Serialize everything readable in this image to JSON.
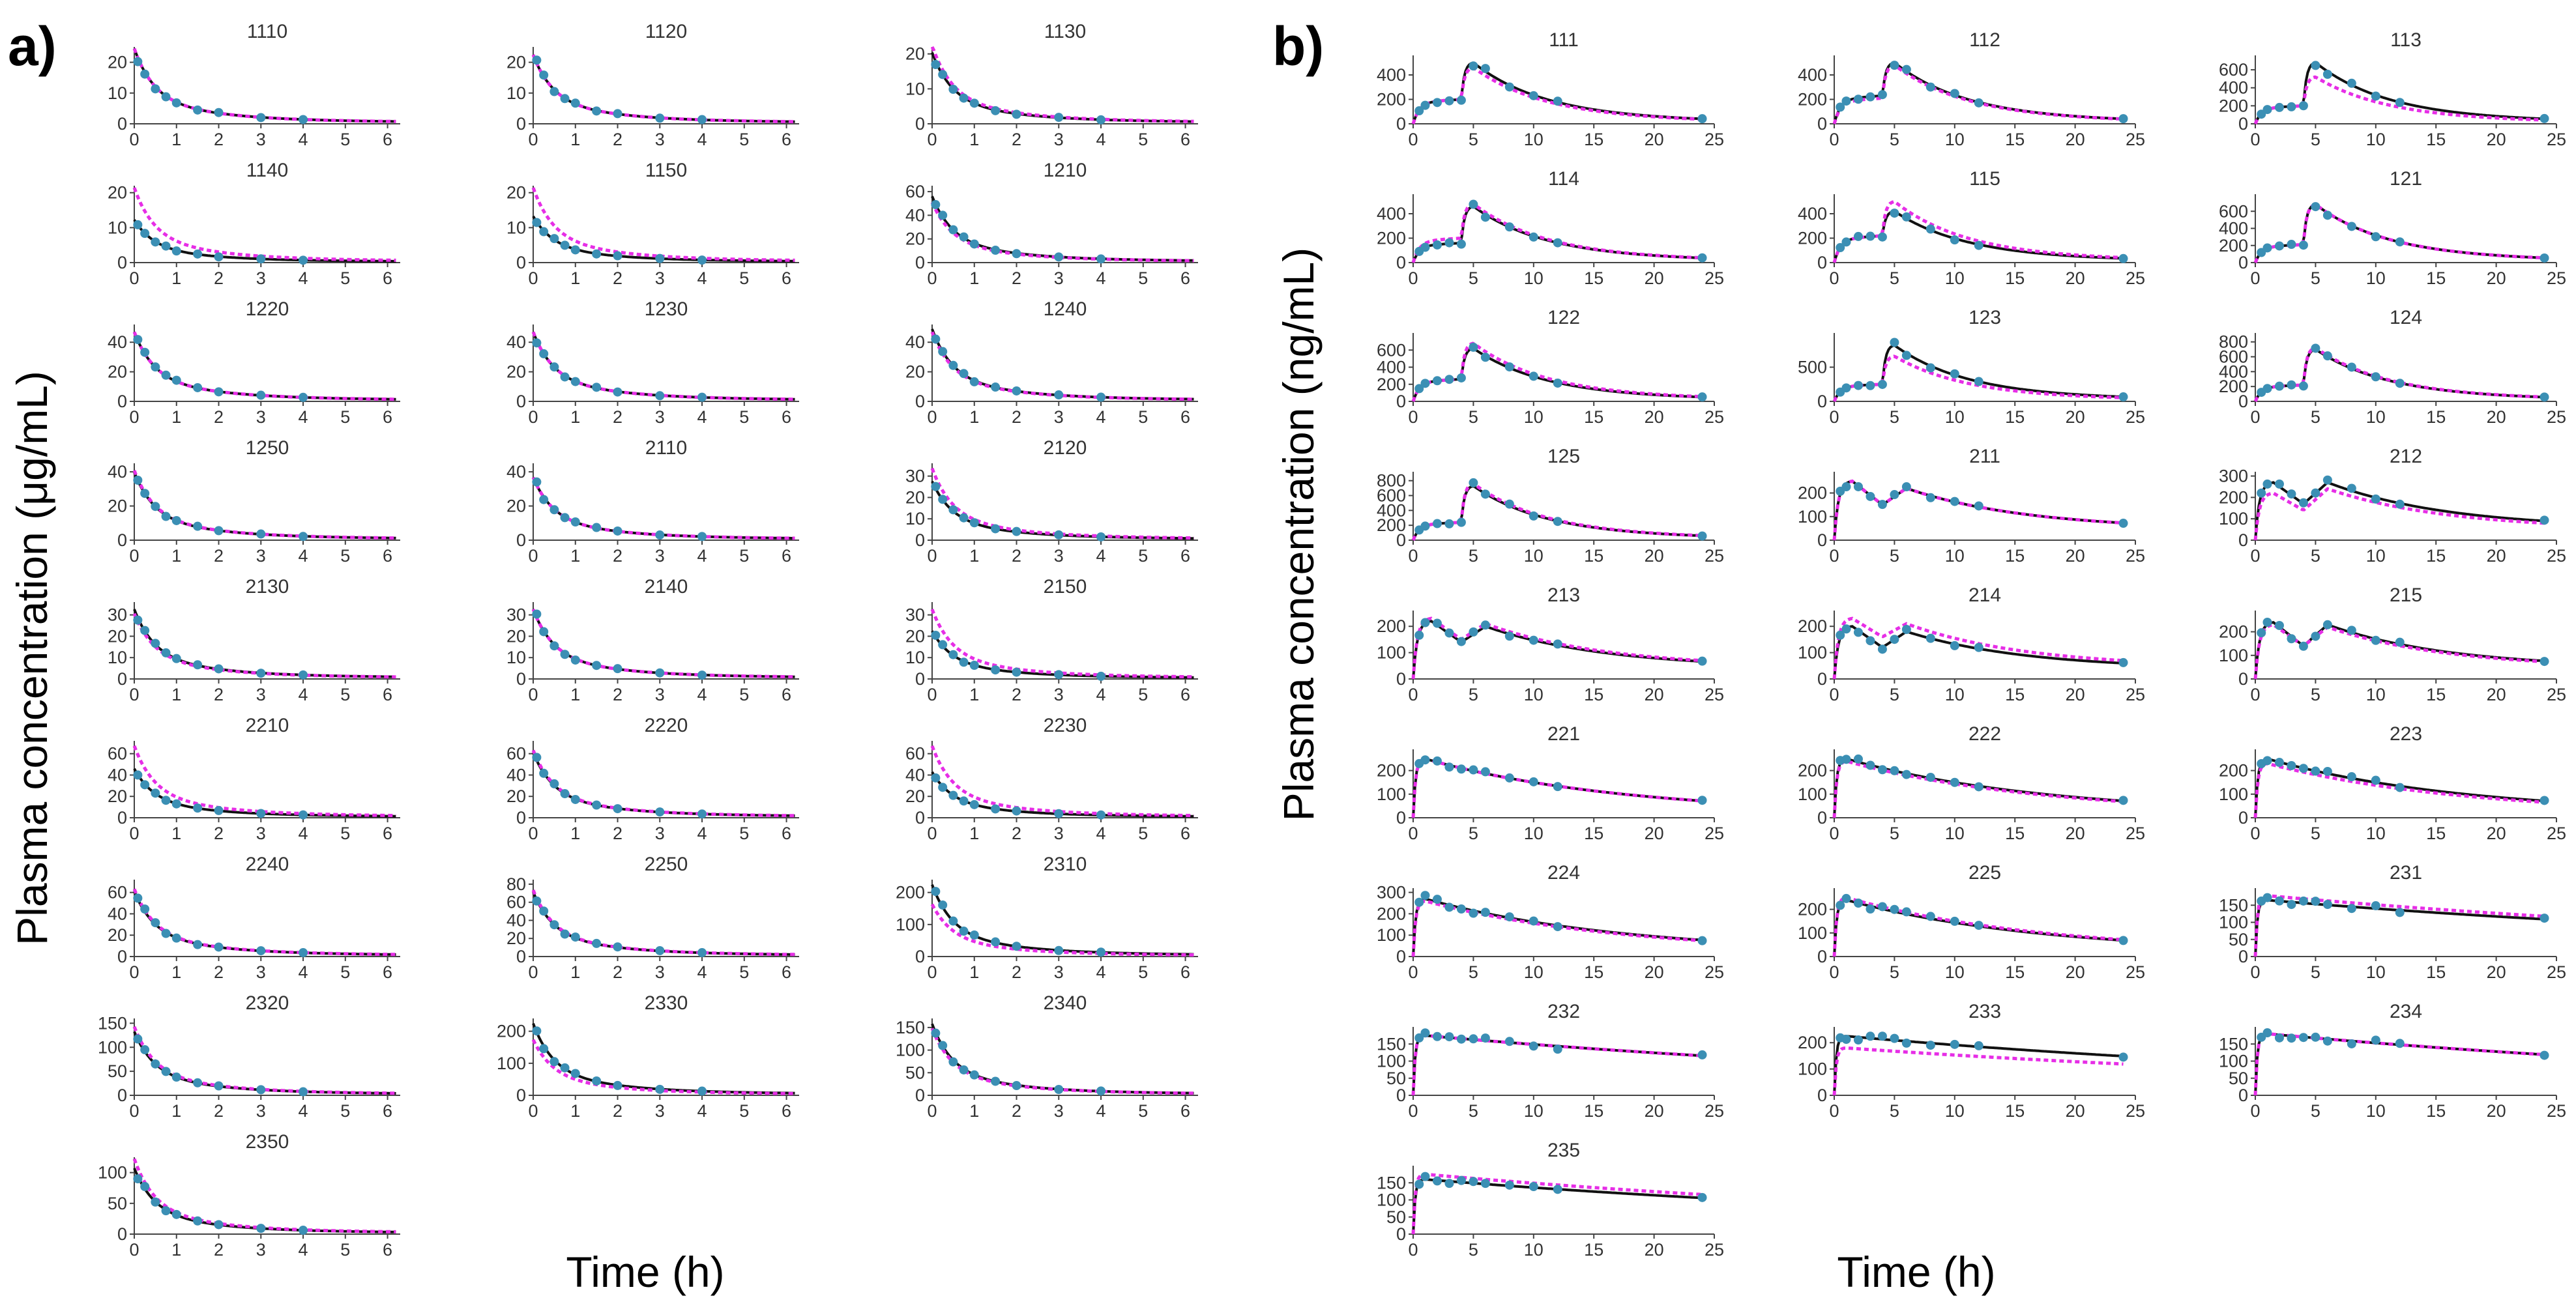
{
  "figure": {
    "panel_a_label": "a)",
    "panel_b_label": "b)",
    "panel_a_ylabel": "Plasma concentration (μg/mL)",
    "panel_a_xlabel": "Time (h)",
    "panel_b_ylabel": "Plasma concentration (ng/mL)",
    "panel_b_xlabel": "Time (h)"
  },
  "colors": {
    "observed_points": "#3b8fb4",
    "observed_fit_line": "#111111",
    "predicted_line": "#e62ee6"
  },
  "chart_data": [
    {
      "panel": "a",
      "type": "line",
      "xlabel": "Time (h)",
      "ylabel": "Plasma concentration (μg/mL)",
      "xlim": [
        0,
        6.3
      ],
      "x_ticks": [
        0,
        1,
        2,
        3,
        4,
        5,
        6
      ],
      "sample_times": [
        0.083,
        0.25,
        0.5,
        0.75,
        1,
        1.5,
        2,
        3,
        4
      ],
      "subplots": [
        {
          "title": "1110",
          "ylim": [
            0,
            25
          ],
          "y_ticks": [
            0,
            10,
            20
          ],
          "c0": 24,
          "pred_c0": 24
        },
        {
          "title": "1120",
          "ylim": [
            0,
            25
          ],
          "y_ticks": [
            0,
            10,
            20
          ],
          "c0": 22,
          "pred_c0": 22
        },
        {
          "title": "1130",
          "ylim": [
            0,
            22
          ],
          "y_ticks": [
            0,
            10,
            20
          ],
          "c0": 20,
          "pred_c0": 22
        },
        {
          "title": "1140",
          "ylim": [
            0,
            22
          ],
          "y_ticks": [
            0,
            10,
            20
          ],
          "c0": 12,
          "pred_c0": 21
        },
        {
          "title": "1150",
          "ylim": [
            0,
            22
          ],
          "y_ticks": [
            0,
            10,
            20
          ],
          "c0": 13,
          "pred_c0": 21
        },
        {
          "title": "1210",
          "ylim": [
            0,
            65
          ],
          "y_ticks": [
            0,
            20,
            40,
            60
          ],
          "c0": 55,
          "pred_c0": 50
        },
        {
          "title": "1220",
          "ylim": [
            0,
            52
          ],
          "y_ticks": [
            0,
            20,
            40
          ],
          "c0": 46,
          "pred_c0": 46
        },
        {
          "title": "1230",
          "ylim": [
            0,
            52
          ],
          "y_ticks": [
            0,
            20,
            40
          ],
          "c0": 46,
          "pred_c0": 46
        },
        {
          "title": "1240",
          "ylim": [
            0,
            52
          ],
          "y_ticks": [
            0,
            20,
            40
          ],
          "c0": 48,
          "pred_c0": 46
        },
        {
          "title": "1250",
          "ylim": [
            0,
            45
          ],
          "y_ticks": [
            0,
            20,
            40
          ],
          "c0": 39,
          "pred_c0": 40
        },
        {
          "title": "2110",
          "ylim": [
            0,
            45
          ],
          "y_ticks": [
            0,
            20,
            40
          ],
          "c0": 36,
          "pred_c0": 36
        },
        {
          "title": "2120",
          "ylim": [
            0,
            36
          ],
          "y_ticks": [
            0,
            10,
            20,
            30
          ],
          "c0": 27,
          "pred_c0": 33
        },
        {
          "title": "2130",
          "ylim": [
            0,
            36
          ],
          "y_ticks": [
            0,
            10,
            20,
            30
          ],
          "c0": 32,
          "pred_c0": 30
        },
        {
          "title": "2140",
          "ylim": [
            0,
            36
          ],
          "y_ticks": [
            0,
            10,
            20,
            30
          ],
          "c0": 32,
          "pred_c0": 32
        },
        {
          "title": "2150",
          "ylim": [
            0,
            36
          ],
          "y_ticks": [
            0,
            10,
            20,
            30
          ],
          "c0": 22,
          "pred_c0": 32
        },
        {
          "title": "2210",
          "ylim": [
            0,
            72
          ],
          "y_ticks": [
            0,
            20,
            40,
            60
          ],
          "c0": 45,
          "pred_c0": 66
        },
        {
          "title": "2220",
          "ylim": [
            0,
            72
          ],
          "y_ticks": [
            0,
            20,
            40,
            60
          ],
          "c0": 60,
          "pred_c0": 62
        },
        {
          "title": "2230",
          "ylim": [
            0,
            72
          ],
          "y_ticks": [
            0,
            20,
            40,
            60
          ],
          "c0": 42,
          "pred_c0": 66
        },
        {
          "title": "2240",
          "ylim": [
            0,
            72
          ],
          "y_ticks": [
            0,
            20,
            40,
            60
          ],
          "c0": 60,
          "pred_c0": 62
        },
        {
          "title": "2250",
          "ylim": [
            0,
            85
          ],
          "y_ticks": [
            0,
            20,
            40,
            60,
            80
          ],
          "c0": 70,
          "pred_c0": 72
        },
        {
          "title": "2310",
          "ylim": [
            0,
            240
          ],
          "y_ticks": [
            0,
            100,
            200
          ],
          "c0": 220,
          "pred_c0": 160
        },
        {
          "title": "2320",
          "ylim": [
            0,
            160
          ],
          "y_ticks": [
            0,
            50,
            100,
            150
          ],
          "c0": 130,
          "pred_c0": 140
        },
        {
          "title": "2330",
          "ylim": [
            0,
            240
          ],
          "y_ticks": [
            0,
            100,
            200
          ],
          "c0": 220,
          "pred_c0": 170
        },
        {
          "title": "2340",
          "ylim": [
            0,
            170
          ],
          "y_ticks": [
            0,
            50,
            100,
            150
          ],
          "c0": 155,
          "pred_c0": 145
        },
        {
          "title": "2350",
          "ylim": [
            0,
            125
          ],
          "y_ticks": [
            0,
            50,
            100
          ],
          "c0": 105,
          "pred_c0": 120
        }
      ]
    },
    {
      "panel": "b",
      "type": "line",
      "xlabel": "Time (h)",
      "ylabel": "Plasma concentration (ng/mL)",
      "xlim": [
        0,
        25
      ],
      "x_ticks": [
        0,
        5,
        10,
        15,
        20,
        25
      ],
      "sample_times": [
        0.5,
        1,
        2,
        3,
        4,
        5,
        6,
        8,
        10,
        12,
        24
      ],
      "subplots": [
        {
          "title": "111",
          "profile": "double",
          "ylim": [
            0,
            560
          ],
          "y_ticks": [
            0,
            200,
            400
          ],
          "plateau": 200,
          "peak": 500,
          "pred_plateau": 200,
          "pred_peak": 460
        },
        {
          "title": "112",
          "profile": "double",
          "ylim": [
            0,
            560
          ],
          "y_ticks": [
            0,
            200,
            400
          ],
          "plateau": 230,
          "peak": 500,
          "pred_plateau": 210,
          "pred_peak": 480
        },
        {
          "title": "113",
          "profile": "double",
          "ylim": [
            0,
            760
          ],
          "y_ticks": [
            0,
            200,
            400,
            600
          ],
          "plateau": 200,
          "peak": 680,
          "pred_plateau": 200,
          "pred_peak": 520
        },
        {
          "title": "114",
          "profile": "double",
          "ylim": [
            0,
            560
          ],
          "y_ticks": [
            0,
            200,
            400
          ],
          "plateau": 160,
          "peak": 460,
          "pred_plateau": 200,
          "pred_peak": 480
        },
        {
          "title": "115",
          "profile": "double",
          "ylim": [
            0,
            560
          ],
          "y_ticks": [
            0,
            200,
            400
          ],
          "plateau": 220,
          "peak": 420,
          "pred_plateau": 220,
          "pred_peak": 500
        },
        {
          "title": "121",
          "profile": "double",
          "ylim": [
            0,
            800
          ],
          "y_ticks": [
            0,
            200,
            400,
            600
          ],
          "plateau": 210,
          "peak": 680,
          "pred_plateau": 210,
          "pred_peak": 680
        },
        {
          "title": "122",
          "profile": "double",
          "ylim": [
            0,
            800
          ],
          "y_ticks": [
            0,
            200,
            400,
            600
          ],
          "plateau": 260,
          "peak": 620,
          "pred_plateau": 260,
          "pred_peak": 680
        },
        {
          "title": "123",
          "profile": "double",
          "ylim": [
            0,
            1000
          ],
          "y_ticks": [
            0,
            500
          ],
          "plateau": 250,
          "peak": 820,
          "pred_plateau": 250,
          "pred_peak": 660
        },
        {
          "title": "124",
          "profile": "double",
          "ylim": [
            0,
            920
          ],
          "y_ticks": [
            0,
            200,
            400,
            600,
            800
          ],
          "plateau": 220,
          "peak": 700,
          "pred_plateau": 220,
          "pred_peak": 720
        },
        {
          "title": "125",
          "profile": "double",
          "ylim": [
            0,
            920
          ],
          "y_ticks": [
            0,
            200,
            400,
            600,
            800
          ],
          "plateau": 240,
          "peak": 730,
          "pred_plateau": 240,
          "pred_peak": 760
        },
        {
          "title": "211",
          "profile": "twin",
          "ylim": [
            0,
            290
          ],
          "y_ticks": [
            0,
            100,
            200
          ],
          "peak1": 250,
          "trough": 150,
          "peak2": 220,
          "pred_peak1": 250,
          "pred_trough": 150,
          "pred_peak2": 220
        },
        {
          "title": "212",
          "profile": "twin",
          "ylim": [
            0,
            320
          ],
          "y_ticks": [
            0,
            100,
            200,
            300
          ],
          "peak1": 270,
          "trough": 170,
          "peak2": 270,
          "pred_peak1": 220,
          "pred_trough": 140,
          "pred_peak2": 240
        },
        {
          "title": "213",
          "profile": "twin",
          "ylim": [
            0,
            260
          ],
          "y_ticks": [
            0,
            100,
            200
          ],
          "peak1": 220,
          "trough": 140,
          "peak2": 200,
          "pred_peak1": 230,
          "pred_trough": 150,
          "pred_peak2": 210
        },
        {
          "title": "214",
          "profile": "twin",
          "ylim": [
            0,
            260
          ],
          "y_ticks": [
            0,
            100,
            200
          ],
          "peak1": 200,
          "trough": 120,
          "peak2": 180,
          "pred_peak1": 230,
          "pred_trough": 160,
          "pred_peak2": 210
        },
        {
          "title": "215",
          "profile": "twin",
          "ylim": [
            0,
            290
          ],
          "y_ticks": [
            0,
            100,
            200
          ],
          "peak1": 240,
          "trough": 140,
          "peak2": 230,
          "pred_peak1": 230,
          "pred_trough": 140,
          "pred_peak2": 220
        },
        {
          "title": "221",
          "profile": "single",
          "ylim": [
            0,
            290
          ],
          "y_ticks": [
            0,
            100,
            200
          ],
          "peak": 250,
          "pred_peak": 250
        },
        {
          "title": "222",
          "profile": "single",
          "ylim": [
            0,
            290
          ],
          "y_ticks": [
            0,
            100,
            200
          ],
          "peak": 250,
          "pred_peak": 240
        },
        {
          "title": "223",
          "profile": "single",
          "ylim": [
            0,
            290
          ],
          "y_ticks": [
            0,
            100,
            200
          ],
          "peak": 250,
          "pred_peak": 230
        },
        {
          "title": "224",
          "profile": "single",
          "ylim": [
            0,
            320
          ],
          "y_ticks": [
            0,
            100,
            200,
            300
          ],
          "peak": 270,
          "pred_peak": 260
        },
        {
          "title": "225",
          "profile": "single",
          "ylim": [
            0,
            290
          ],
          "y_ticks": [
            0,
            100,
            200
          ],
          "peak": 240,
          "pred_peak": 250
        },
        {
          "title": "231",
          "profile": "plateau",
          "ylim": [
            0,
            200
          ],
          "y_ticks": [
            0,
            50,
            100,
            150
          ],
          "peak": 165,
          "pred_peak": 178
        },
        {
          "title": "232",
          "profile": "plateau",
          "ylim": [
            0,
            200
          ],
          "y_ticks": [
            0,
            50,
            100,
            150
          ],
          "peak": 175,
          "pred_peak": 175
        },
        {
          "title": "233",
          "profile": "plateau",
          "ylim": [
            0,
            260
          ],
          "y_ticks": [
            0,
            100,
            200
          ],
          "peak": 225,
          "pred_peak": 180
        },
        {
          "title": "234",
          "profile": "plateau",
          "ylim": [
            0,
            200
          ],
          "y_ticks": [
            0,
            50,
            100,
            150
          ],
          "peak": 180,
          "pred_peak": 180
        },
        {
          "title": "235",
          "profile": "plateau",
          "ylim": [
            0,
            200
          ],
          "y_ticks": [
            0,
            50,
            100,
            150
          ],
          "peak": 160,
          "pred_peak": 175
        }
      ]
    }
  ]
}
